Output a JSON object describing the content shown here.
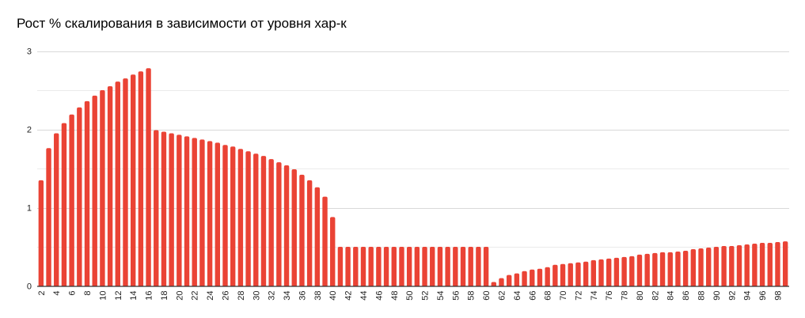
{
  "chart": {
    "title": "Рост % скалирования в зависимости от уровня хар-к",
    "bar_color": "#ea4335",
    "grid_color": "#d9d9d9",
    "minor_grid_color": "#ebebeb",
    "axis_color": "#333333"
  },
  "chart_data": {
    "type": "bar",
    "title": "Рост % скалирования в зависимости от уровня хар-к",
    "xlabel": "",
    "ylabel": "",
    "ylim": [
      0,
      3
    ],
    "yticks": [
      0,
      1,
      2,
      3
    ],
    "minor_gridlines": [
      0.5,
      1.5,
      2.5
    ],
    "grid": true,
    "legend": "none",
    "x_tick_labels_shown": [
      2,
      4,
      6,
      8,
      10,
      12,
      14,
      16,
      18,
      20,
      22,
      24,
      26,
      28,
      30,
      32,
      34,
      36,
      38,
      40,
      42,
      44,
      46,
      48,
      50,
      52,
      54,
      56,
      58,
      60,
      62,
      64,
      66,
      68,
      70,
      72,
      74,
      76,
      78,
      80,
      82,
      84,
      86,
      88,
      90,
      92,
      94,
      96,
      98
    ],
    "categories": [
      2,
      3,
      4,
      5,
      6,
      7,
      8,
      9,
      10,
      11,
      12,
      13,
      14,
      15,
      16,
      17,
      18,
      19,
      20,
      21,
      22,
      23,
      24,
      25,
      26,
      27,
      28,
      29,
      30,
      31,
      32,
      33,
      34,
      35,
      36,
      37,
      38,
      39,
      40,
      41,
      42,
      43,
      44,
      45,
      46,
      47,
      48,
      49,
      50,
      51,
      52,
      53,
      54,
      55,
      56,
      57,
      58,
      59,
      60,
      61,
      62,
      63,
      64,
      65,
      66,
      67,
      68,
      69,
      70,
      71,
      72,
      73,
      74,
      75,
      76,
      77,
      78,
      79,
      80,
      81,
      82,
      83,
      84,
      85,
      86,
      87,
      88,
      89,
      90,
      91,
      92,
      93,
      94,
      95,
      96,
      97,
      98,
      99
    ],
    "series": [
      {
        "name": "Рост % скалирования",
        "values": [
          1.35,
          1.76,
          1.95,
          2.08,
          2.19,
          2.28,
          2.36,
          2.43,
          2.5,
          2.55,
          2.61,
          2.65,
          2.7,
          2.74,
          2.78,
          1.99,
          1.97,
          1.95,
          1.93,
          1.91,
          1.89,
          1.87,
          1.85,
          1.83,
          1.8,
          1.78,
          1.75,
          1.72,
          1.69,
          1.66,
          1.62,
          1.58,
          1.54,
          1.49,
          1.42,
          1.35,
          1.26,
          1.14,
          0.88,
          0.5,
          0.5,
          0.5,
          0.5,
          0.5,
          0.5,
          0.5,
          0.5,
          0.5,
          0.5,
          0.5,
          0.5,
          0.5,
          0.5,
          0.5,
          0.5,
          0.5,
          0.5,
          0.5,
          0.5,
          0.05,
          0.1,
          0.14,
          0.16,
          0.19,
          0.21,
          0.22,
          0.24,
          0.27,
          0.28,
          0.29,
          0.3,
          0.31,
          0.33,
          0.34,
          0.35,
          0.36,
          0.37,
          0.38,
          0.4,
          0.41,
          0.42,
          0.43,
          0.43,
          0.44,
          0.45,
          0.47,
          0.48,
          0.49,
          0.5,
          0.51,
          0.51,
          0.52,
          0.53,
          0.54,
          0.55,
          0.55,
          0.56,
          0.57
        ]
      }
    ]
  }
}
